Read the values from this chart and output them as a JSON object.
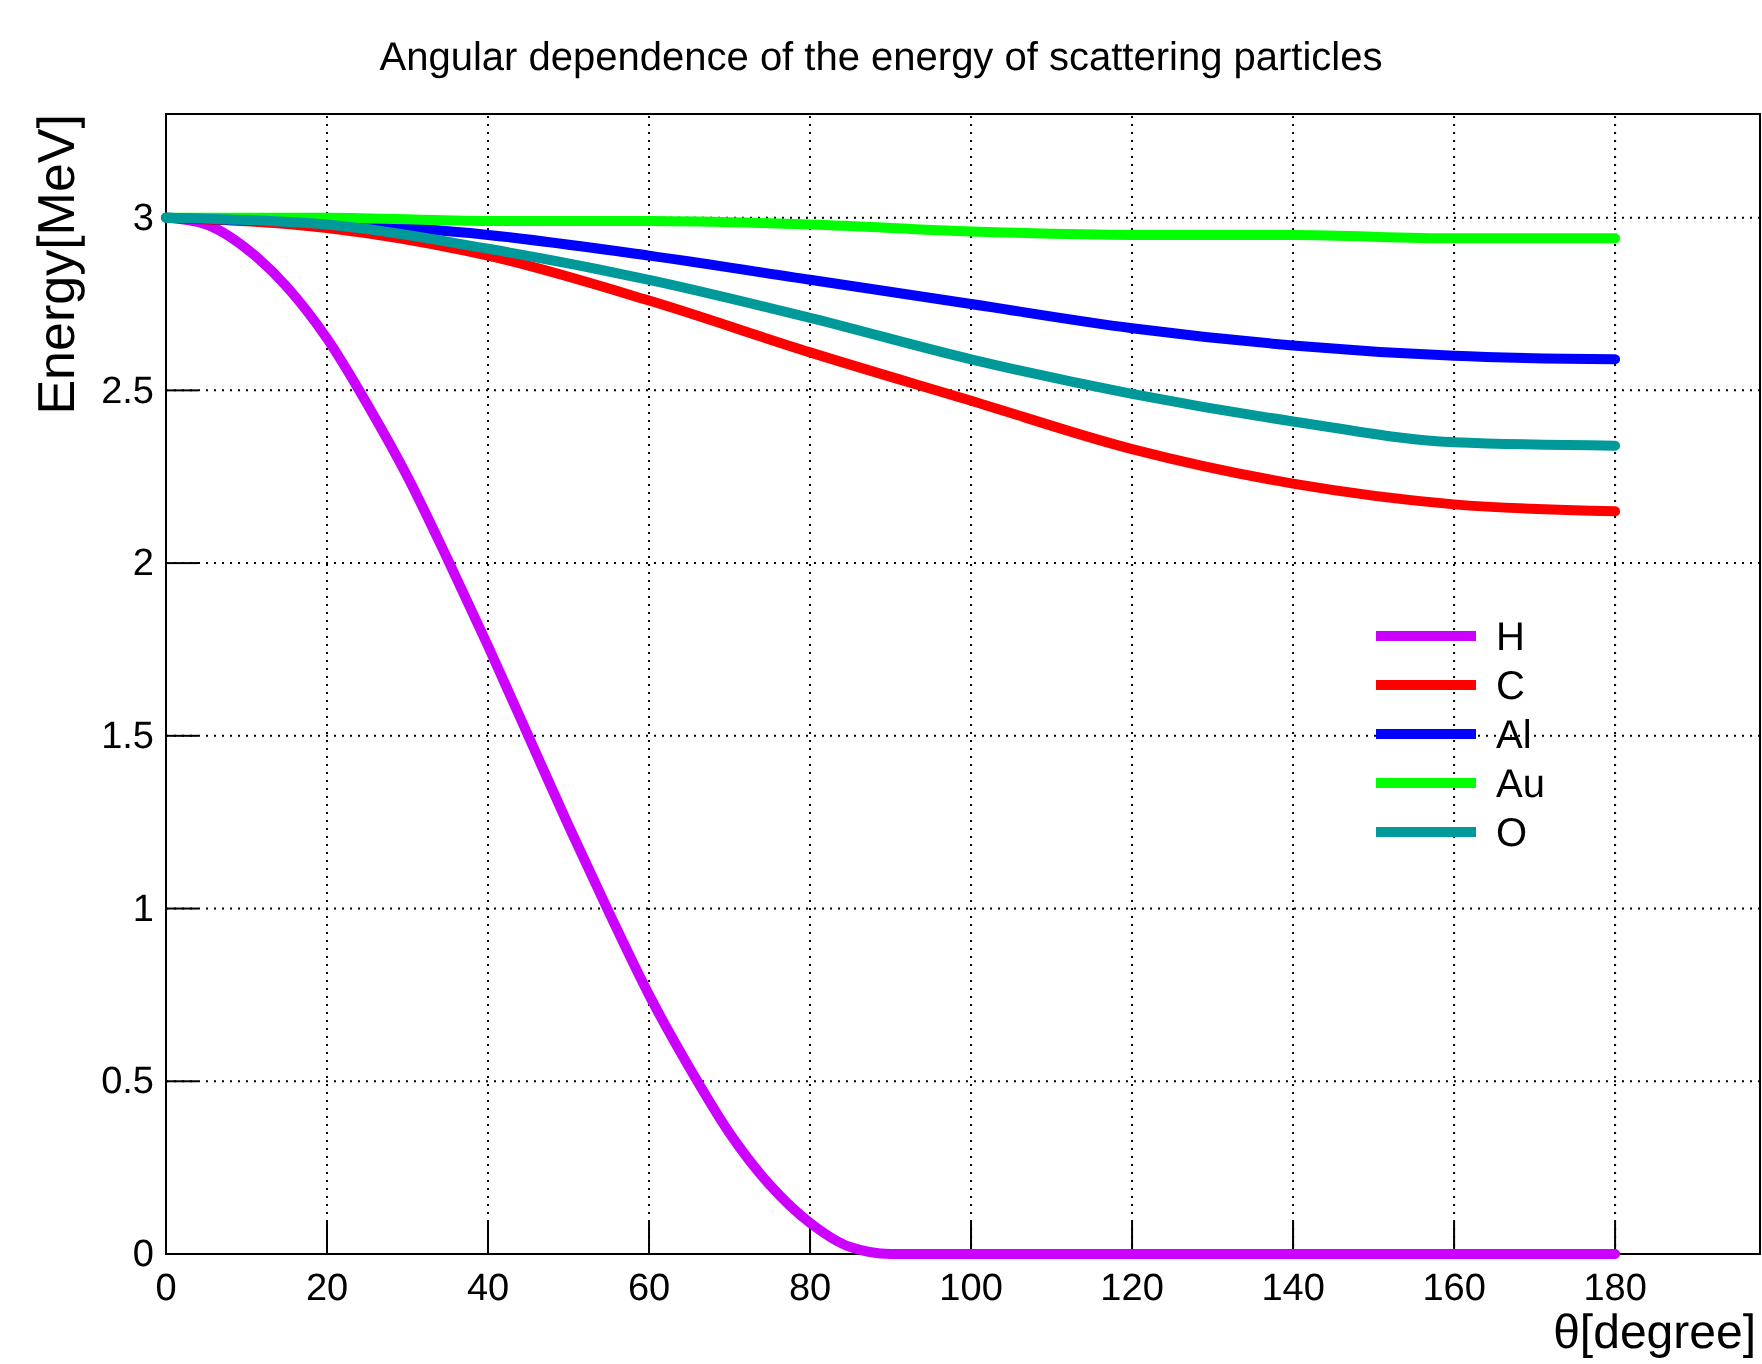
{
  "chart_data": {
    "type": "line",
    "title": "Angular dependence of the energy of scattering particles",
    "xlabel": "θ[degree]",
    "ylabel": "Energy[MeV]",
    "xlim": [
      0,
      198
    ],
    "xticks": [
      0,
      20,
      40,
      60,
      80,
      100,
      120,
      140,
      160,
      180
    ],
    "ylim": [
      0,
      3.3
    ],
    "yticks": [
      0,
      0.5,
      1,
      1.5,
      2,
      2.5,
      3
    ],
    "grid": true,
    "legend": "right",
    "line_style": "solid",
    "series": [
      {
        "name": "H",
        "color": "#cc00ff",
        "x": [
          0,
          5,
          10,
          15,
          20,
          25,
          30,
          35,
          40,
          45,
          50,
          55,
          60,
          65,
          70,
          75,
          80,
          85,
          90,
          100,
          120,
          140,
          160,
          180
        ],
        "values": [
          3,
          2.98,
          2.91,
          2.8,
          2.65,
          2.46,
          2.25,
          2.01,
          1.76,
          1.5,
          1.24,
          0.99,
          0.75,
          0.54,
          0.35,
          0.2,
          0.09,
          0.02,
          0,
          0,
          0,
          0,
          0,
          0
        ]
      },
      {
        "name": "C",
        "color": "#ff0000",
        "x": [
          0,
          20,
          40,
          60,
          80,
          100,
          120,
          140,
          160,
          180
        ],
        "values": [
          3,
          2.97,
          2.89,
          2.76,
          2.61,
          2.47,
          2.33,
          2.23,
          2.17,
          2.15
        ]
      },
      {
        "name": "Al",
        "color": "#0000ff",
        "x": [
          0,
          20,
          40,
          60,
          80,
          100,
          120,
          140,
          160,
          180
        ],
        "values": [
          3,
          null,
          2.95,
          2.89,
          2.82,
          2.75,
          2.68,
          2.63,
          2.6,
          2.59
        ]
      },
      {
        "name": "Au",
        "color": "#00ff00",
        "x": [
          0,
          20,
          40,
          60,
          80,
          100,
          120,
          140,
          160,
          180
        ],
        "values": [
          3,
          3,
          2.99,
          2.99,
          2.98,
          2.96,
          2.95,
          2.95,
          2.94,
          2.94
        ]
      },
      {
        "name": "O",
        "color": "#009999",
        "x": [
          0,
          20,
          40,
          60,
          80,
          100,
          120,
          140,
          160,
          180
        ],
        "values": [
          3,
          2.98,
          2.91,
          2.82,
          2.71,
          2.59,
          2.49,
          2.41,
          2.35,
          2.34
        ]
      }
    ]
  }
}
